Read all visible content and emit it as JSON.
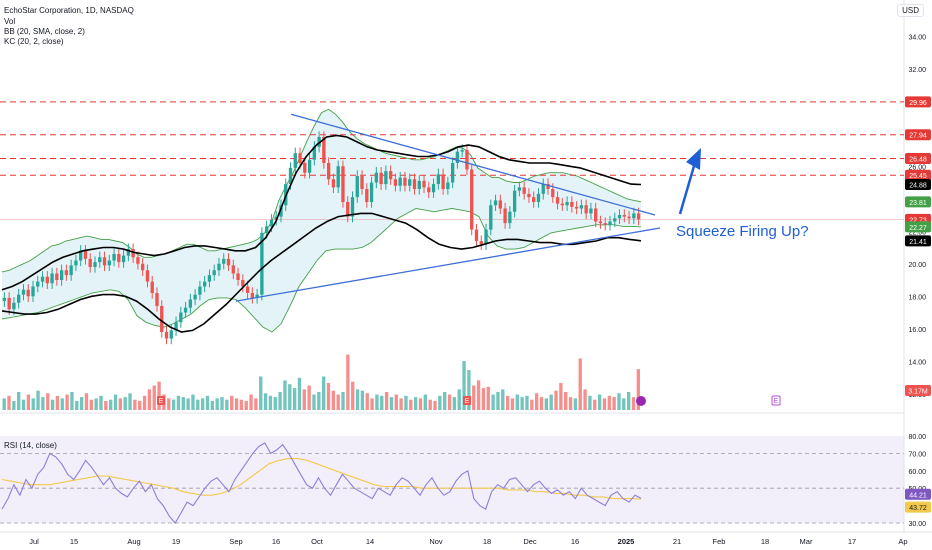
{
  "header": {
    "symbol_line": "EchoStar Corporation, 1D, NASDAQ",
    "vol_label": "Vol",
    "bb_label": "BB (20, SMA, close, 2)",
    "kc_label": "KC (20, 2, close)",
    "currency": "USD"
  },
  "rsi": {
    "label": "RSI (14, close)",
    "value": "44.21",
    "ma_value": "43.72",
    "scale": [
      "80.00",
      "70.00",
      "60.00",
      "50.00",
      "40.00",
      "30.00"
    ]
  },
  "annotation": {
    "text": "Squeeze Firing Up?"
  },
  "earnings_marker": "E",
  "colors": {
    "up": "#26a69a",
    "down": "#ef5350",
    "level_line": "#e53935",
    "trend_line": "#3d6fd8",
    "kc_line": "#000000",
    "bb_line": "#43a047",
    "bb_fill": "#dff1f7",
    "rsi_line": "#8c7fd6",
    "rsi_ma": "#f2c94c",
    "rsi_bg": "#ece8fa"
  },
  "chart_data": {
    "type": "candlestick",
    "ylim": [
      11,
      35
    ],
    "price_scale": [
      "34.00",
      "32.00",
      "30.00",
      "28.00",
      "26.00",
      "24.00",
      "22.00",
      "20.00",
      "18.00",
      "16.00",
      "14.00",
      "12.00"
    ],
    "x_ticks": [
      "Jul",
      "15",
      "Aug",
      "19",
      "Sep",
      "16",
      "Oct",
      "14",
      "Nov",
      "18",
      "Dec",
      "16",
      "2025",
      "21",
      "Feb",
      "18",
      "Mar",
      "17",
      "Ap"
    ],
    "price_labels": [
      {
        "value": 29.96,
        "label": "29.96",
        "kind": "level"
      },
      {
        "value": 27.94,
        "label": "27.94",
        "kind": "level"
      },
      {
        "value": 26.48,
        "label": "26.48",
        "kind": "level"
      },
      {
        "value": 25.45,
        "label": "25.45",
        "kind": "level"
      },
      {
        "value": 24.88,
        "label": "24.88",
        "kind": "kc"
      },
      {
        "value": 23.81,
        "label": "23.81",
        "kind": "bb"
      },
      {
        "value": 22.73,
        "label": "22.73",
        "kind": "last"
      },
      {
        "value": 22.27,
        "label": "22.27",
        "kind": "bb"
      },
      {
        "value": 21.41,
        "label": "21.41",
        "kind": "kc"
      },
      {
        "value": 12.2,
        "label": "3.17M",
        "kind": "vol"
      }
    ],
    "levels": [
      29.96,
      27.94,
      26.48,
      25.45
    ],
    "closes": [
      17.9,
      17.2,
      17.6,
      18.1,
      18.4,
      18.0,
      18.6,
      18.9,
      19.2,
      18.8,
      19.4,
      19.0,
      19.6,
      19.3,
      19.9,
      20.2,
      20.8,
      20.3,
      19.8,
      20.1,
      20.4,
      19.9,
      20.2,
      20.6,
      20.1,
      20.5,
      20.9,
      20.4,
      20.0,
      19.6,
      18.9,
      18.2,
      17.4,
      15.8,
      15.4,
      15.9,
      16.4,
      17.0,
      17.3,
      17.8,
      18.1,
      18.6,
      18.9,
      19.3,
      19.6,
      20.0,
      20.3,
      19.9,
      19.4,
      19.0,
      18.6,
      18.2,
      17.9,
      18.1,
      21.9,
      22.3,
      22.7,
      22.9,
      23.6,
      24.9,
      25.9,
      26.8,
      26.2,
      25.6,
      26.4,
      27.2,
      27.8,
      26.2,
      25.2,
      24.7,
      26.0,
      23.8,
      22.9,
      24.1,
      25.4,
      24.6,
      23.8,
      25.0,
      25.6,
      24.9,
      25.7,
      25.2,
      24.8,
      25.3,
      24.8,
      25.2,
      24.6,
      25.1,
      24.7,
      24.4,
      24.9,
      25.5,
      24.6,
      25.0,
      26.2,
      26.9,
      27.0,
      25.8,
      22.1,
      21.4,
      21.2,
      22.1,
      23.6,
      23.9,
      23.4,
      22.5,
      23.2,
      24.5,
      24.7,
      24.3,
      24.1,
      23.8,
      24.3,
      24.9,
      24.6,
      24.1,
      23.7,
      23.6,
      23.8,
      23.5,
      23.4,
      23.6,
      23.1,
      23.4,
      22.6,
      22.5,
      22.4,
      22.6,
      22.8,
      23.0,
      22.9,
      22.8,
      23.1,
      22.73
    ],
    "bb_upper": [
      19.5,
      19.6,
      19.8,
      20.0,
      20.2,
      20.5,
      20.8,
      21.1,
      21.2,
      21.4,
      21.5,
      21.6,
      21.7,
      21.6,
      21.5,
      21.5,
      21.4,
      21.3,
      21.0,
      20.6,
      20.4,
      20.4,
      20.5,
      20.6,
      20.8,
      21.0,
      21.2,
      21.2,
      21.0,
      20.8,
      20.8,
      20.9,
      21.0,
      21.1,
      21.2,
      21.3,
      21.5,
      21.9,
      22.6,
      23.9,
      24.8,
      25.6,
      26.6,
      27.6,
      28.5,
      29.3,
      29.5,
      29.2,
      28.7,
      28.1,
      27.7,
      27.4,
      27.2,
      27.0,
      26.8,
      26.7,
      26.6,
      26.5,
      26.4,
      26.4,
      26.5,
      26.6,
      26.8,
      27.0,
      27.2,
      27.1,
      26.7,
      25.9,
      25.6,
      25.3,
      25.3,
      25.1,
      25.0,
      25.0,
      25.2,
      25.4,
      25.5,
      25.6,
      25.6,
      25.6,
      25.5,
      25.4,
      25.2,
      25.0,
      24.8,
      24.6,
      24.4,
      24.2,
      24.0,
      23.9,
      23.81
    ],
    "bb_lower": [
      16.6,
      16.7,
      16.8,
      16.9,
      17.0,
      17.2,
      17.4,
      17.6,
      17.8,
      18.0,
      18.2,
      18.3,
      18.4,
      18.3,
      17.8,
      16.8,
      16.4,
      16.2,
      16.1,
      16.3,
      16.6,
      16.9,
      17.4,
      17.8,
      17.9,
      17.9,
      17.8,
      17.3,
      16.7,
      16.1,
      15.8,
      16.3,
      17.4,
      18.6,
      19.4,
      20.2,
      20.8,
      20.9,
      20.9,
      20.9,
      21.0,
      21.3,
      21.8,
      22.3,
      22.8,
      23.1,
      23.4,
      23.3,
      23.2,
      23.3,
      23.4,
      23.3,
      23.2,
      22.9,
      21.7,
      21.1,
      20.9,
      20.9,
      21.0,
      21.3,
      21.6,
      21.9,
      22.0,
      22.1,
      22.2,
      22.3,
      22.4,
      22.4,
      22.4,
      22.3,
      22.3,
      22.27
    ],
    "kc_upper": [
      18.4,
      18.6,
      18.9,
      19.3,
      19.7,
      20.1,
      20.4,
      20.6,
      20.8,
      20.9,
      21.0,
      21.0,
      20.9,
      20.7,
      20.6,
      20.5,
      20.6,
      20.8,
      21.0,
      21.1,
      21.1,
      21.0,
      20.9,
      20.8,
      20.8,
      21.0,
      21.6,
      22.6,
      24.2,
      25.6,
      26.6,
      27.3,
      27.8,
      27.9,
      27.8,
      27.5,
      27.2,
      27.0,
      26.9,
      26.8,
      26.7,
      26.6,
      26.6,
      26.7,
      26.9,
      27.2,
      27.3,
      27.2,
      26.9,
      26.6,
      26.4,
      26.3,
      26.2,
      26.2,
      26.2,
      26.1,
      26.0,
      25.9,
      25.7,
      25.5,
      25.3,
      25.1,
      24.9,
      24.88
    ],
    "kc_lower": [
      17.1,
      17.0,
      16.9,
      16.9,
      17.0,
      17.2,
      17.5,
      17.8,
      18.0,
      18.1,
      18.1,
      18.0,
      17.7,
      17.2,
      16.6,
      16.1,
      15.8,
      15.9,
      16.3,
      16.9,
      17.5,
      18.2,
      18.9,
      19.6,
      20.2,
      20.7,
      21.2,
      21.7,
      22.2,
      22.6,
      22.9,
      23.0,
      23.1,
      23.1,
      22.9,
      22.7,
      22.5,
      22.1,
      21.6,
      21.2,
      21.0,
      20.9,
      21.0,
      21.2,
      21.4,
      21.5,
      21.5,
      21.4,
      21.3,
      21.3,
      21.2,
      21.2,
      21.3,
      21.4,
      21.6,
      21.6,
      21.5,
      21.41
    ],
    "volume_millions": [
      0.9,
      1.1,
      0.7,
      1.4,
      0.8,
      1.2,
      0.9,
      1.5,
      1.0,
      1.3,
      0.8,
      1.1,
      0.9,
      1.2,
      1.4,
      0.7,
      1.0,
      1.3,
      0.8,
      0.9,
      1.1,
      0.7,
      0.8,
      1.2,
      0.9,
      1.0,
      1.3,
      0.8,
      0.7,
      1.1,
      1.6,
      1.9,
      2.2,
      1.2,
      0.9,
      0.8,
      1.1,
      1.0,
      0.9,
      1.2,
      0.8,
      0.9,
      1.1,
      0.7,
      0.9,
      1.0,
      0.8,
      1.1,
      0.9,
      0.8,
      0.7,
      1.2,
      0.9,
      2.6,
      1.3,
      1.1,
      1.0,
      1.4,
      2.3,
      2.0,
      1.7,
      2.5,
      1.6,
      1.9,
      1.2,
      1.4,
      2.6,
      2.1,
      1.5,
      1.2,
      1.4,
      4.3,
      2.2,
      1.6,
      1.5,
      1.3,
      0.9,
      1.2,
      1.1,
      1.4,
      1.0,
      1.2,
      0.9,
      1.1,
      0.8,
      1.0,
      0.9,
      1.2,
      0.8,
      0.7,
      1.1,
      1.4,
      1.2,
      1.0,
      1.6,
      3.8,
      3.1,
      1.9,
      2.3,
      1.7,
      1.8,
      1.2,
      1.4,
      1.6,
      1.1,
      0.9,
      1.2,
      1.0,
      1.1,
      0.8,
      1.3,
      1.0,
      0.9,
      1.2,
      1.5,
      2.1,
      1.4,
      1.0,
      0.9,
      4.0,
      1.6,
      1.1,
      0.8,
      1.2,
      0.9,
      1.1,
      1.0,
      1.3,
      0.9,
      1.4,
      1.0,
      3.17
    ],
    "rsi": [
      38,
      44,
      52,
      46,
      55,
      50,
      58,
      62,
      70,
      68,
      64,
      58,
      55,
      60,
      66,
      62,
      57,
      52,
      56,
      50,
      47,
      45,
      50,
      54,
      48,
      52,
      44,
      40,
      34,
      30,
      36,
      42,
      40,
      45,
      50,
      54,
      56,
      52,
      48,
      55,
      60,
      65,
      70,
      74,
      76,
      70,
      72,
      75,
      70,
      64,
      58,
      52,
      50,
      56,
      50,
      46,
      52,
      58,
      54,
      50,
      48,
      46,
      44,
      50,
      48,
      46,
      52,
      56,
      54,
      50,
      46,
      52,
      56,
      50,
      46,
      48,
      54,
      58,
      60,
      44,
      40,
      38,
      48,
      52,
      50,
      55,
      56,
      52,
      48,
      52,
      54,
      50,
      47,
      49,
      46,
      48,
      44,
      50,
      46,
      44,
      42,
      40,
      46,
      48,
      44,
      42,
      46,
      44.21
    ],
    "rsi_ma": [
      55,
      54,
      53,
      52,
      52,
      52,
      53,
      54,
      55,
      56,
      57,
      57,
      56,
      55,
      54,
      53,
      52,
      51,
      50,
      48,
      47,
      46,
      46,
      47,
      49,
      52,
      56,
      60,
      64,
      66,
      67,
      67,
      66,
      64,
      62,
      60,
      58,
      56,
      54,
      52,
      51,
      51,
      51,
      51,
      50,
      50,
      50,
      50,
      50,
      50,
      50,
      50,
      50,
      49,
      49,
      49,
      48,
      48,
      47,
      47,
      46,
      46,
      45,
      45,
      44,
      44,
      44,
      43.72
    ]
  }
}
